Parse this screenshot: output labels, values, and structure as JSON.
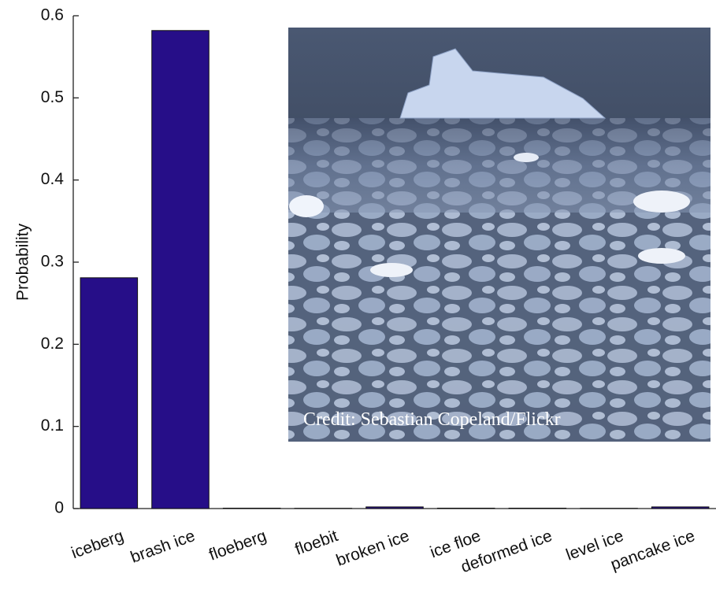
{
  "chart_data": {
    "type": "bar",
    "ylabel": "Probability",
    "categories": [
      "iceberg",
      "brash ice",
      "floeberg",
      "floebit",
      "broken ice",
      "ice floe",
      "deformed ice",
      "level ice",
      "pancake ice"
    ],
    "values": [
      0.281,
      0.582,
      0.0005,
      0.0003,
      0.002,
      0.0005,
      0.0005,
      0.0003,
      0.002
    ],
    "color": "#260e88",
    "ylim": [
      0,
      0.6
    ],
    "yticks": [
      0,
      0.1,
      0.2,
      0.3,
      0.4,
      0.5,
      0.6
    ],
    "annotation": "Credit: Sebastian Copeland/Flickr"
  }
}
